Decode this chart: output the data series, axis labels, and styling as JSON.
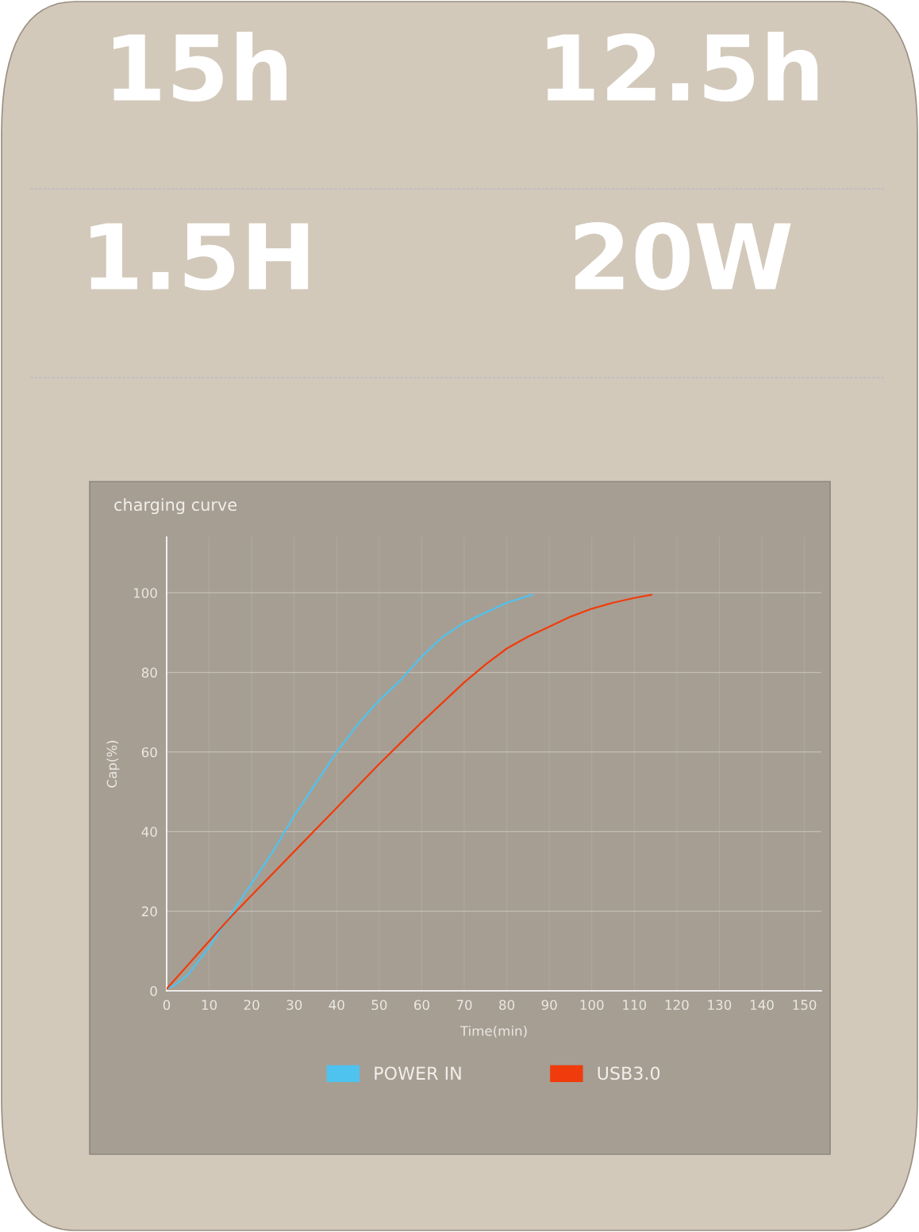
{
  "chart_data": [
    {
      "type": "other",
      "annotations": [
        "15h",
        "12.5h",
        "1.5H",
        "20W"
      ]
    },
    {
      "type": "line",
      "title": "charging curve",
      "xlabel": "Time(min)",
      "ylabel": "Cap(%)",
      "xlim": [
        0,
        154
      ],
      "xticks": [
        0,
        10,
        20,
        30,
        40,
        50,
        60,
        70,
        80,
        90,
        100,
        110,
        120,
        130,
        140,
        150
      ],
      "ylim": [
        0,
        114
      ],
      "yticks": [
        0,
        20,
        40,
        60,
        80,
        100
      ],
      "grid": true,
      "legend": "bottom",
      "marker": "none",
      "line_style": "solid",
      "series": [
        {
          "name": "POWER IN",
          "color": "#4fc3ef",
          "x": [
            0,
            2,
            5,
            10,
            15,
            20,
            25,
            30,
            35,
            40,
            45,
            50,
            55,
            60,
            65,
            70,
            75,
            80,
            86
          ],
          "values": [
            0.5,
            1.5,
            4,
            11,
            19,
            27,
            35,
            44,
            52,
            60,
            67,
            73,
            78,
            84,
            89,
            92.5,
            95,
            97.5,
            99.5
          ]
        },
        {
          "name": "USB3.0",
          "color": "#f03c0c",
          "x": [
            0,
            5,
            10,
            15,
            20,
            30,
            40,
            50,
            60,
            70,
            75,
            80,
            85,
            90,
            95,
            100,
            105,
            110,
            114
          ],
          "values": [
            0.5,
            6.5,
            12.5,
            18.5,
            24,
            35,
            46,
            57,
            67.5,
            77.5,
            82,
            86,
            89,
            91.5,
            94,
            96,
            97.5,
            98.7,
            99.5
          ]
        }
      ]
    }
  ]
}
